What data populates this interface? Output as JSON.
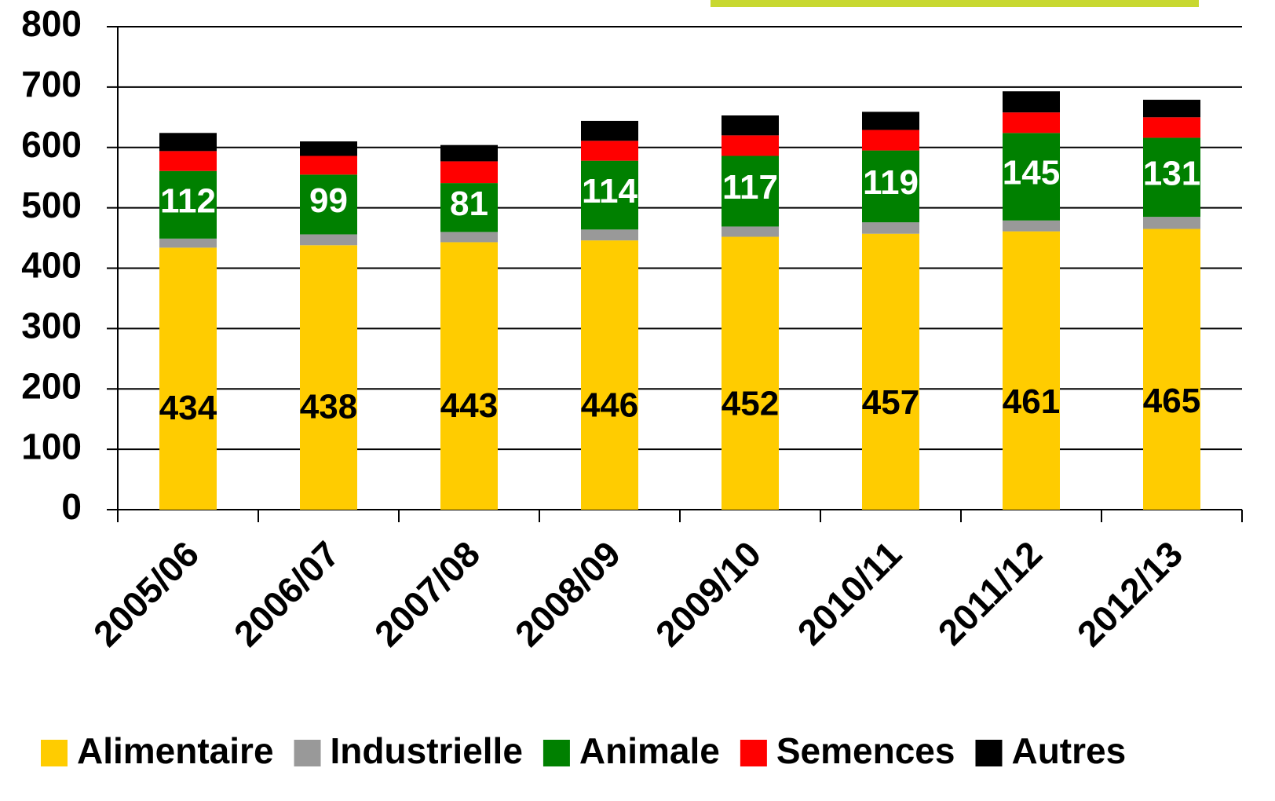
{
  "chart_data": {
    "type": "stacked_bar",
    "categories": [
      "2005/06",
      "2006/07",
      "2007/08",
      "2008/09",
      "2009/10",
      "2010/11",
      "2011/12",
      "2012/13"
    ],
    "series": [
      {
        "name": "Alimentaire",
        "color": "#ffcc00",
        "label_color": "#000000",
        "show_labels": true,
        "values": [
          434,
          438,
          443,
          446,
          452,
          457,
          461,
          465
        ]
      },
      {
        "name": "Industrielle",
        "color": "#999999",
        "show_labels": false,
        "values": [
          15,
          18,
          17,
          18,
          17,
          19,
          18,
          20
        ]
      },
      {
        "name": "Animale",
        "color": "#008000",
        "label_color": "#ffffff",
        "show_labels": true,
        "values": [
          112,
          99,
          81,
          114,
          117,
          119,
          145,
          131
        ]
      },
      {
        "name": "Semences",
        "color": "#ff0000",
        "show_labels": false,
        "values": [
          33,
          31,
          36,
          33,
          34,
          34,
          34,
          34
        ]
      },
      {
        "name": "Autres",
        "color": "#000000",
        "show_labels": false,
        "values": [
          30,
          24,
          27,
          33,
          33,
          30,
          35,
          29
        ]
      }
    ],
    "ylim": [
      0,
      800
    ],
    "yticks": [
      0,
      100,
      200,
      300,
      400,
      500,
      600,
      700,
      800
    ],
    "grid": true,
    "legend": "bottom"
  }
}
